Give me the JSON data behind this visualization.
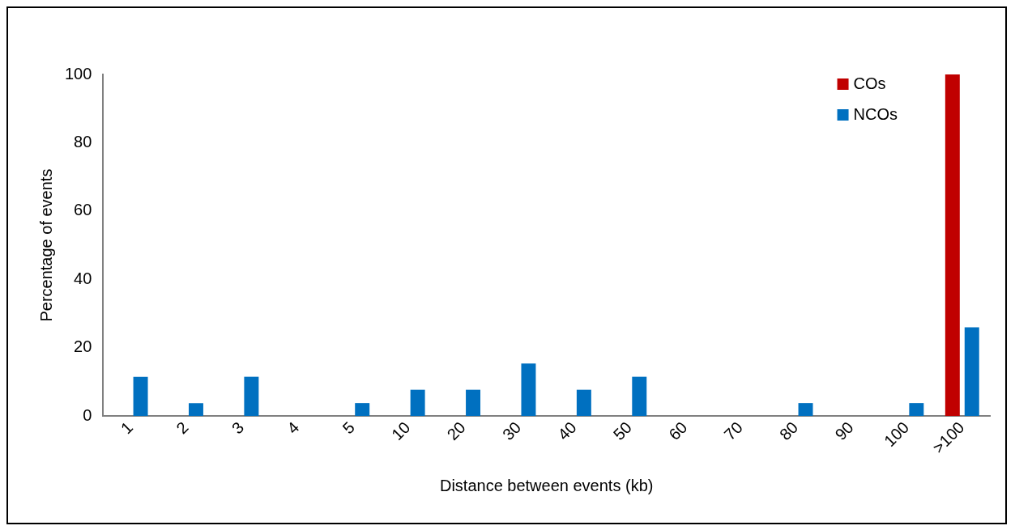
{
  "chart_data": {
    "type": "bar",
    "xlabel": "Distance between events (kb)",
    "ylabel": "Percentage of events",
    "categories": [
      "1",
      "2",
      "3",
      "4",
      "5",
      "10",
      "20",
      "30",
      "40",
      "50",
      "60",
      "70",
      "80",
      "90",
      "100",
      ">100"
    ],
    "series": [
      {
        "name": "COs",
        "color": "#c00000",
        "values": [
          0,
          0,
          0,
          0,
          0,
          0,
          0,
          0,
          0,
          0,
          0,
          0,
          0,
          0,
          0,
          100
        ]
      },
      {
        "name": "NCOs",
        "color": "#0070c0",
        "values": [
          11.5,
          3.8,
          11.5,
          0,
          3.8,
          7.7,
          7.7,
          15.4,
          7.7,
          11.5,
          0,
          0,
          3.8,
          0,
          3.8,
          26
        ]
      }
    ],
    "ylim": [
      0,
      100
    ],
    "yticks": [
      0,
      20,
      40,
      60,
      80,
      100
    ],
    "grid": false,
    "legend": "top right"
  }
}
